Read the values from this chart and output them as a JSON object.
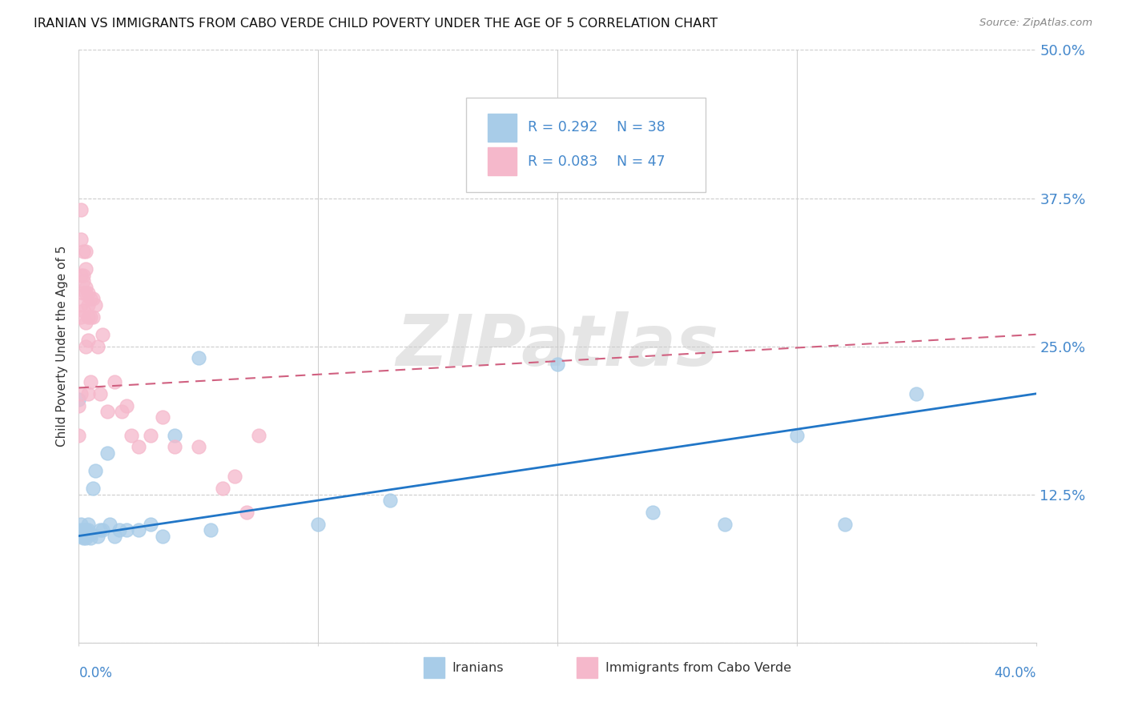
{
  "title": "IRANIAN VS IMMIGRANTS FROM CABO VERDE CHILD POVERTY UNDER THE AGE OF 5 CORRELATION CHART",
  "source": "Source: ZipAtlas.com",
  "ylabel": "Child Poverty Under the Age of 5",
  "yticks": [
    0.0,
    0.125,
    0.25,
    0.375,
    0.5
  ],
  "ytick_labels": [
    "",
    "12.5%",
    "25.0%",
    "37.5%",
    "50.0%"
  ],
  "xlim": [
    0.0,
    0.4
  ],
  "ylim": [
    0.0,
    0.5
  ],
  "legend_iranian_R": "0.292",
  "legend_iranian_N": "38",
  "legend_cabo_R": "0.083",
  "legend_cabo_N": "47",
  "iranian_color": "#a8cce8",
  "cabo_color": "#f5b8cb",
  "iranian_line_color": "#2176c7",
  "cabo_line_color": "#d06080",
  "axis_label_color": "#4488cc",
  "title_color": "#111111",
  "iranians_x": [
    0.0,
    0.001,
    0.001,
    0.001,
    0.002,
    0.002,
    0.002,
    0.003,
    0.003,
    0.003,
    0.004,
    0.004,
    0.005,
    0.005,
    0.006,
    0.007,
    0.008,
    0.009,
    0.01,
    0.012,
    0.013,
    0.015,
    0.017,
    0.02,
    0.025,
    0.03,
    0.035,
    0.04,
    0.05,
    0.055,
    0.1,
    0.13,
    0.2,
    0.24,
    0.27,
    0.3,
    0.32,
    0.35
  ],
  "iranians_y": [
    0.205,
    0.1,
    0.095,
    0.09,
    0.095,
    0.09,
    0.088,
    0.095,
    0.092,
    0.088,
    0.1,
    0.095,
    0.088,
    0.092,
    0.13,
    0.145,
    0.09,
    0.095,
    0.095,
    0.16,
    0.1,
    0.09,
    0.095,
    0.095,
    0.095,
    0.1,
    0.09,
    0.175,
    0.24,
    0.095,
    0.1,
    0.12,
    0.235,
    0.11,
    0.1,
    0.175,
    0.1,
    0.21
  ],
  "cabo_x": [
    0.0,
    0.0,
    0.001,
    0.001,
    0.001,
    0.001,
    0.001,
    0.001,
    0.002,
    0.002,
    0.002,
    0.002,
    0.002,
    0.003,
    0.003,
    0.003,
    0.003,
    0.003,
    0.003,
    0.004,
    0.004,
    0.004,
    0.004,
    0.004,
    0.005,
    0.005,
    0.005,
    0.006,
    0.006,
    0.007,
    0.008,
    0.009,
    0.01,
    0.012,
    0.015,
    0.018,
    0.02,
    0.022,
    0.025,
    0.03,
    0.035,
    0.04,
    0.05,
    0.06,
    0.065,
    0.07,
    0.075
  ],
  "cabo_y": [
    0.2,
    0.175,
    0.365,
    0.34,
    0.31,
    0.285,
    0.275,
    0.21,
    0.33,
    0.31,
    0.305,
    0.295,
    0.28,
    0.33,
    0.315,
    0.3,
    0.295,
    0.27,
    0.25,
    0.295,
    0.285,
    0.275,
    0.255,
    0.21,
    0.29,
    0.275,
    0.22,
    0.29,
    0.275,
    0.285,
    0.25,
    0.21,
    0.26,
    0.195,
    0.22,
    0.195,
    0.2,
    0.175,
    0.165,
    0.175,
    0.19,
    0.165,
    0.165,
    0.13,
    0.14,
    0.11,
    0.175
  ],
  "watermark_text": "ZIPatlas",
  "background_color": "#ffffff",
  "iranian_line_start_y": 0.09,
  "iranian_line_end_y": 0.21,
  "cabo_line_start_y": 0.215,
  "cabo_line_end_y": 0.26
}
